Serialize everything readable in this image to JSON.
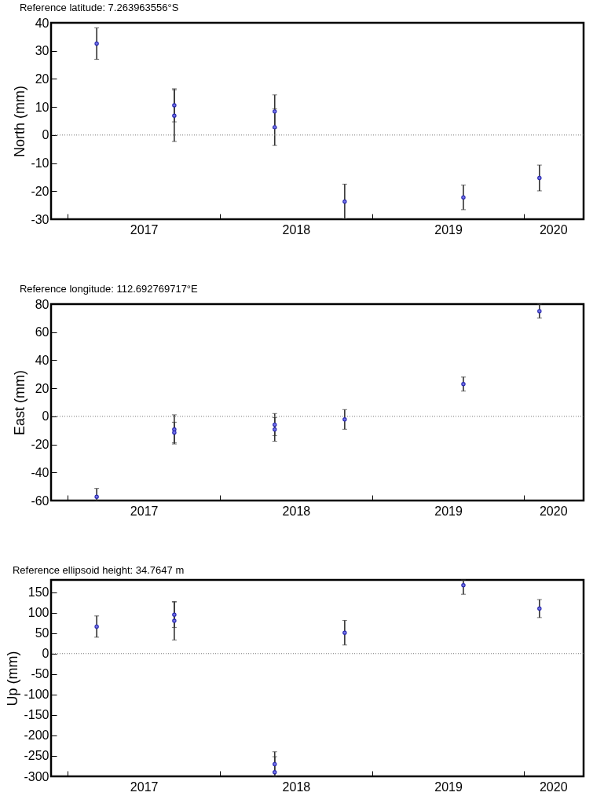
{
  "chart_data": [
    {
      "type": "scatter",
      "title": "Reference latitude: 7.263963556°S",
      "ylabel": "North (mm)",
      "marker": "circle",
      "grid": false,
      "x": [
        2017.19,
        2017.7,
        2017.7,
        2018.36,
        2018.36,
        2018.82,
        2019.6,
        2020.1
      ],
      "series": [
        {
          "color": "#2b2bb0",
          "values": [
            32.6,
            10.6,
            6.9,
            8.4,
            2.8,
            -23.7,
            -22.2,
            -15.3
          ],
          "errors": [
            5.6,
            5.9,
            9.2,
            5.9,
            6.5,
            6.2,
            4.4,
            4.6
          ]
        }
      ],
      "xlim": [
        2016.89,
        2020.39
      ],
      "xticks": [
        {
          "value": 2017,
          "label": null
        },
        {
          "value": 2017.5,
          "label": "2017"
        },
        {
          "value": 2018,
          "label": null
        },
        {
          "value": 2018.5,
          "label": "2018"
        },
        {
          "value": 2019,
          "label": null
        },
        {
          "value": 2019.5,
          "label": "2019"
        },
        {
          "value": 2020,
          "label": null
        },
        {
          "value": 2020.19,
          "label": "2020"
        }
      ],
      "ylim": [
        -30,
        40
      ],
      "yticks": [
        -30,
        -20,
        -10,
        0,
        10,
        20,
        30,
        40
      ],
      "ref_lines": [
        {
          "axis": "y",
          "value": 0,
          "label": null,
          "color": "#777777",
          "line_style": "dotted"
        }
      ]
    },
    {
      "type": "scatter",
      "title": "Reference longitude: 112.692769717°E",
      "ylabel": "East (mm)",
      "marker": "circle",
      "grid": false,
      "x": [
        2017.19,
        2017.7,
        2017.7,
        2018.36,
        2018.36,
        2018.82,
        2019.6,
        2020.1
      ],
      "series": [
        {
          "color": "#2b2bb0",
          "values": [
            -57.3,
            -9.3,
            -11.5,
            -5.9,
            -9.3,
            -2.2,
            23.0,
            75.0
          ],
          "errors": [
            [
              -60,
              -51.4
            ],
            10.4,
            7.3,
            7.9,
            8.4,
            7,
            5,
            5
          ]
        }
      ],
      "xlim": [
        2016.89,
        2020.39
      ],
      "xticks": [
        {
          "value": 2017,
          "label": null
        },
        {
          "value": 2017.5,
          "label": "2017"
        },
        {
          "value": 2018,
          "label": null
        },
        {
          "value": 2018.5,
          "label": "2018"
        },
        {
          "value": 2019,
          "label": null
        },
        {
          "value": 2019.5,
          "label": "2019"
        },
        {
          "value": 2020,
          "label": null
        },
        {
          "value": 2020.19,
          "label": "2020"
        }
      ],
      "ylim": [
        -60,
        80
      ],
      "yticks": [
        -60,
        -40,
        -20,
        0,
        20,
        40,
        60,
        80
      ],
      "ref_lines": [
        {
          "axis": "y",
          "value": 0,
          "label": null,
          "color": "#777777",
          "line_style": "dotted"
        }
      ]
    },
    {
      "type": "scatter",
      "title": "Reference ellipsoid height: 34.7647 m",
      "ylabel": "Up (mm)",
      "marker": "circle",
      "grid": false,
      "x": [
        2017.19,
        2017.7,
        2017.7,
        2018.36,
        2018.36,
        2018.82,
        2019.6,
        2020.1
      ],
      "series": [
        {
          "color": "#2b2bb0",
          "values": [
            66,
            95,
            80,
            -270,
            -290,
            51,
            167,
            110
          ],
          "errors": [
            26,
            31,
            47,
            30,
            [
              -300,
              -252
            ],
            30,
            [
              145,
              180
            ],
            22
          ]
        }
      ],
      "xlim": [
        2016.89,
        2020.39
      ],
      "xticks": [
        {
          "value": 2017,
          "label": null
        },
        {
          "value": 2017.5,
          "label": "2017"
        },
        {
          "value": 2018,
          "label": null
        },
        {
          "value": 2018.5,
          "label": "2018"
        },
        {
          "value": 2019,
          "label": null
        },
        {
          "value": 2019.5,
          "label": "2019"
        },
        {
          "value": 2020,
          "label": null
        },
        {
          "value": 2020.19,
          "label": "2020"
        }
      ],
      "ylim": [
        -300,
        180
      ],
      "yticks": [
        -300,
        -250,
        -200,
        -150,
        -100,
        -50,
        0,
        50,
        100,
        150
      ],
      "ref_lines": [
        {
          "axis": "y",
          "value": 0,
          "label": null,
          "color": "#777777",
          "line_style": "dotted"
        }
      ]
    }
  ]
}
